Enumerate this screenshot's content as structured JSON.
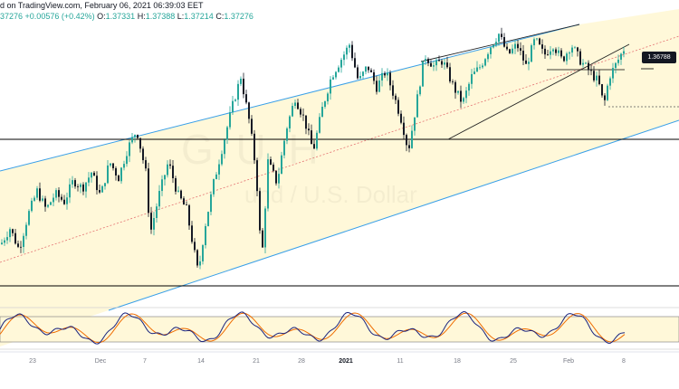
{
  "header": {
    "line1": "d on TradingView.com, February 06, 2021 06:39:03 EET",
    "change": "+0.00576 (+0.42%)",
    "o_label": "O:",
    "o_val": "1.37331",
    "h_label": "H:",
    "h_val": "1.37388",
    "l_label": "L:",
    "l_val": "1.37214",
    "c_label": "C:",
    "c_val": "1.37276",
    "cut_price": "37276"
  },
  "watermark": {
    "big": "G   U  H",
    "small": "und / U.S. Dollar"
  },
  "price_tag": "1.36788",
  "x_ticks": [
    "23",
    "Dec",
    "7",
    "14",
    "21",
    "28",
    "2021",
    "11",
    "18",
    "25",
    "Feb",
    "8"
  ],
  "chart_data": {
    "type": "candlestick",
    "title": "",
    "xlabel": "",
    "ylabel": "",
    "highlighted_price": 1.36788,
    "x_tick_labels": [
      "23",
      "Dec",
      "7",
      "14",
      "21",
      "28",
      "2021",
      "11",
      "18",
      "25",
      "Feb",
      "8"
    ],
    "ohlc_last": {
      "open": 1.37331,
      "high": 1.37388,
      "low": 1.37214,
      "close": 1.37276,
      "change": 0.00576,
      "change_pct": 0.42
    },
    "price_path": [
      [
        0,
        1.3365
      ],
      [
        10,
        1.3395
      ],
      [
        20,
        1.3355
      ],
      [
        30,
        1.342
      ],
      [
        40,
        1.3465
      ],
      [
        50,
        1.343
      ],
      [
        60,
        1.346
      ],
      [
        70,
        1.3445
      ],
      [
        80,
        1.3485
      ],
      [
        90,
        1.347
      ],
      [
        100,
        1.35
      ],
      [
        110,
        1.3455
      ],
      [
        120,
        1.352
      ],
      [
        130,
        1.349
      ],
      [
        140,
        1.3545
      ],
      [
        150,
        1.358
      ],
      [
        160,
        1.35
      ],
      [
        165,
        1.3385
      ],
      [
        175,
        1.346
      ],
      [
        185,
        1.352
      ],
      [
        195,
        1.346
      ],
      [
        205,
        1.343
      ],
      [
        212,
        1.3365
      ],
      [
        218,
        1.331
      ],
      [
        225,
        1.3395
      ],
      [
        235,
        1.348
      ],
      [
        245,
        1.355
      ],
      [
        255,
        1.362
      ],
      [
        265,
        1.368
      ],
      [
        275,
        1.359
      ],
      [
        282,
        1.35
      ],
      [
        288,
        1.333
      ],
      [
        295,
        1.352
      ],
      [
        305,
        1.348
      ],
      [
        315,
        1.358
      ],
      [
        325,
        1.364
      ],
      [
        335,
        1.36
      ],
      [
        345,
        1.354
      ],
      [
        355,
        1.362
      ],
      [
        365,
        1.368
      ],
      [
        375,
        1.371
      ],
      [
        385,
        1.374
      ],
      [
        395,
        1.367
      ],
      [
        405,
        1.37
      ],
      [
        415,
        1.366
      ],
      [
        425,
        1.369
      ],
      [
        435,
        1.364
      ],
      [
        443,
        1.3595
      ],
      [
        450,
        1.354
      ],
      [
        458,
        1.362
      ],
      [
        468,
        1.372
      ],
      [
        478,
        1.37
      ],
      [
        488,
        1.371
      ],
      [
        500,
        1.366
      ],
      [
        510,
        1.363
      ],
      [
        520,
        1.368
      ],
      [
        530,
        1.37
      ],
      [
        540,
        1.3735
      ],
      [
        550,
        1.376
      ],
      [
        560,
        1.372
      ],
      [
        570,
        1.374
      ],
      [
        580,
        1.37
      ],
      [
        590,
        1.375
      ],
      [
        600,
        1.372
      ],
      [
        610,
        1.374
      ],
      [
        620,
        1.371
      ],
      [
        630,
        1.374
      ],
      [
        640,
        1.371
      ],
      [
        650,
        1.369
      ],
      [
        660,
        1.367
      ],
      [
        666,
        1.3625
      ],
      [
        672,
        1.368
      ],
      [
        680,
        1.3705
      ],
      [
        690,
        1.3738
      ]
    ]
  }
}
